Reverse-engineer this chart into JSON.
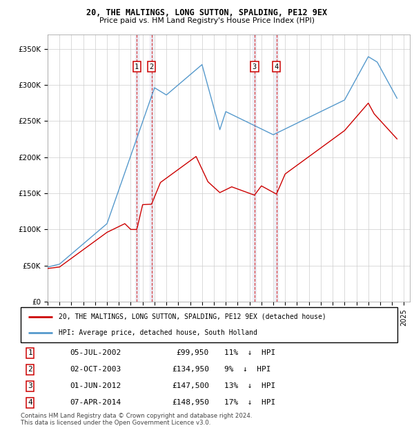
{
  "title": "20, THE MALTINGS, LONG SUTTON, SPALDING, PE12 9EX",
  "subtitle": "Price paid vs. HM Land Registry's House Price Index (HPI)",
  "ylabel_ticks": [
    "£0",
    "£50K",
    "£100K",
    "£150K",
    "£200K",
    "£250K",
    "£300K",
    "£350K"
  ],
  "ytick_values": [
    0,
    50000,
    100000,
    150000,
    200000,
    250000,
    300000,
    350000
  ],
  "ylim": [
    0,
    370000
  ],
  "xlim_start": 1995.0,
  "xlim_end": 2025.5,
  "legend_line1": "20, THE MALTINGS, LONG SUTTON, SPALDING, PE12 9EX (detached house)",
  "legend_line2": "HPI: Average price, detached house, South Holland",
  "line_color_red": "#cc0000",
  "line_color_blue": "#5599cc",
  "transactions": [
    {
      "num": 1,
      "date": "05-JUL-2002",
      "x": 2002.51,
      "price": 99950,
      "pct": "11%",
      "dir": "↓"
    },
    {
      "num": 2,
      "date": "02-OCT-2003",
      "x": 2003.75,
      "price": 134950,
      "pct": "9%",
      "dir": "↓"
    },
    {
      "num": 3,
      "date": "01-JUN-2012",
      "x": 2012.42,
      "price": 147500,
      "pct": "13%",
      "dir": "↓"
    },
    {
      "num": 4,
      "date": "07-APR-2014",
      "x": 2014.27,
      "price": 148950,
      "pct": "17%",
      "dir": "↓"
    }
  ],
  "footnote1": "Contains HM Land Registry data © Crown copyright and database right 2024.",
  "footnote2": "This data is licensed under the Open Government Licence v3.0."
}
